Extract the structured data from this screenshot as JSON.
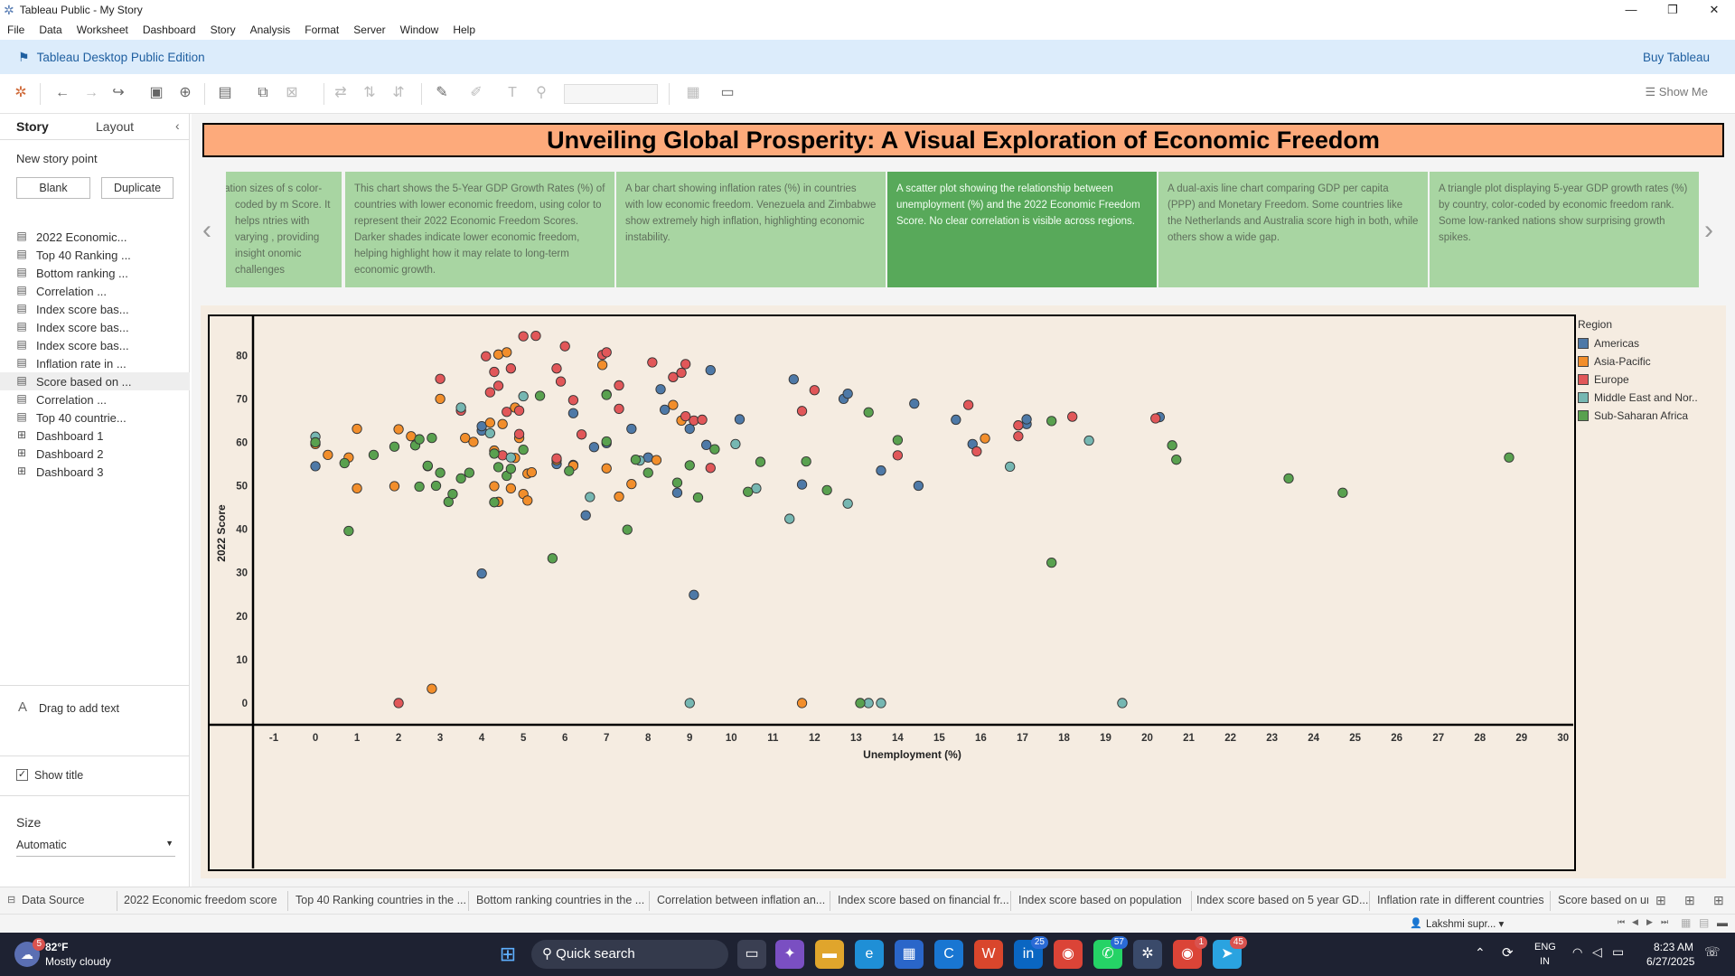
{
  "window": {
    "title": "Tableau Public - My Story"
  },
  "menu": [
    "File",
    "Data",
    "Worksheet",
    "Dashboard",
    "Story",
    "Analysis",
    "Format",
    "Server",
    "Window",
    "Help"
  ],
  "edition": {
    "label": "Tableau Desktop Public Edition",
    "buy": "Buy Tableau"
  },
  "toolbar": {
    "show_me": "Show Me"
  },
  "sidebar": {
    "tabs": {
      "story": "Story",
      "layout": "Layout"
    },
    "new_story_point": "New story point",
    "blank": "Blank",
    "duplicate": "Duplicate",
    "items": [
      {
        "label": "2022 Economic...",
        "type": "sheet"
      },
      {
        "label": "Top 40 Ranking ...",
        "type": "sheet"
      },
      {
        "label": "Bottom ranking ...",
        "type": "sheet"
      },
      {
        "label": "Correlation ...",
        "type": "sheet"
      },
      {
        "label": "Index score bas...",
        "type": "sheet"
      },
      {
        "label": "Index score bas...",
        "type": "sheet"
      },
      {
        "label": "Index score bas...",
        "type": "sheet"
      },
      {
        "label": "Inflation rate in ...",
        "type": "sheet"
      },
      {
        "label": "Score based on ...",
        "type": "sheet",
        "selected": true
      },
      {
        "label": "Correlation ...",
        "type": "sheet"
      },
      {
        "label": "Top 40 countrie...",
        "type": "sheet"
      },
      {
        "label": "Dashboard 1",
        "type": "dashboard"
      },
      {
        "label": "Dashboard 2",
        "type": "dashboard"
      },
      {
        "label": "Dashboard 3",
        "type": "dashboard"
      }
    ],
    "drag_text": "Drag to add text",
    "show_title": "Show title",
    "size_label": "Size",
    "size_value": "Automatic"
  },
  "story": {
    "title": "Unveiling Global Prosperity: A Visual Exploration of Economic Freedom",
    "points": [
      {
        "text": "population sizes of s color-coded by m Score. It helps ntries with varying , providing insight onomic challenges",
        "active": false
      },
      {
        "text": "This chart shows the 5-Year GDP Growth Rates (%) of countries with lower economic freedom, using color to represent their 2022 Economic Freedom Scores. Darker shades indicate lower economic freedom, helping highlight how it may relate to long-term economic growth.",
        "active": false
      },
      {
        "text": "A bar chart showing inflation rates (%) in countries with low economic freedom. Venezuela and Zimbabwe show extremely high inflation, highlighting economic instability.",
        "active": false
      },
      {
        "text": "A scatter plot showing the relationship between unemployment (%) and the 2022 Economic Freedom Score. No clear correlation is visible across regions.",
        "active": true
      },
      {
        "text": "A dual-axis line chart comparing GDP per capita (PPP) and Monetary Freedom. Some countries like the Netherlands and Australia score high in both, while others show a wide gap.",
        "active": false
      },
      {
        "text": "A triangle plot displaying 5-year GDP growth rates (%) by country, color-coded by economic freedom rank. Some low-ranked nations show surprising growth spikes.",
        "active": false
      }
    ]
  },
  "chart_data": {
    "type": "scatter",
    "xlabel": "Unemployment (%)",
    "ylabel": "2022 Score",
    "xlim": [
      -1.5,
      30.2
    ],
    "ylim": [
      -5,
      89
    ],
    "xticks": [
      -1,
      0,
      1,
      2,
      3,
      4,
      5,
      6,
      7,
      8,
      9,
      10,
      11,
      12,
      13,
      14,
      15,
      16,
      17,
      18,
      19,
      20,
      21,
      22,
      23,
      24,
      25,
      26,
      27,
      28,
      29,
      30
    ],
    "yticks": [
      0,
      10,
      20,
      30,
      40,
      50,
      60,
      70,
      80
    ],
    "legend_title": "Region",
    "series": [
      {
        "name": "Americas",
        "color": "#4e79a7",
        "points": [
          [
            0,
            54.5
          ],
          [
            4,
            29.8
          ],
          [
            4,
            62.7
          ],
          [
            4,
            63.7
          ],
          [
            5.8,
            55
          ],
          [
            6.2,
            54.8
          ],
          [
            6.2,
            66.7
          ],
          [
            6.5,
            43.2
          ],
          [
            6.7,
            58.9
          ],
          [
            7,
            59.8
          ],
          [
            7.6,
            63.1
          ],
          [
            8,
            56.5
          ],
          [
            8.3,
            72.2
          ],
          [
            8.4,
            67.5
          ],
          [
            8.7,
            48.4
          ],
          [
            9.0,
            63.1
          ],
          [
            9.1,
            24.9
          ],
          [
            9.4,
            59.4
          ],
          [
            9.5,
            76.6
          ],
          [
            10.2,
            65.3
          ],
          [
            11.5,
            74.5
          ],
          [
            11.7,
            50.3
          ],
          [
            12.7,
            70
          ],
          [
            12.8,
            71.2
          ],
          [
            13.6,
            53.5
          ],
          [
            14.4,
            68.9
          ],
          [
            14.5,
            50
          ],
          [
            15.4,
            65.2
          ],
          [
            15.8,
            59.6
          ],
          [
            17.1,
            64.2
          ],
          [
            17.1,
            65.3
          ],
          [
            20.3,
            65.8
          ]
        ]
      },
      {
        "name": "Asia-Pacific",
        "color": "#f28e2b",
        "points": [
          [
            0,
            59.6
          ],
          [
            0.3,
            57.1
          ],
          [
            0.8,
            56.5
          ],
          [
            1,
            49.4
          ],
          [
            1,
            63.1
          ],
          [
            1.9,
            49.9
          ],
          [
            2,
            63
          ],
          [
            2.3,
            61.4
          ],
          [
            2.7,
            54.5
          ],
          [
            2.8,
            3.3
          ],
          [
            3,
            70
          ],
          [
            3.6,
            61
          ],
          [
            3.8,
            60.1
          ],
          [
            4.2,
            64.5
          ],
          [
            4.3,
            49.9
          ],
          [
            4.3,
            58.1
          ],
          [
            4.4,
            46.3
          ],
          [
            4.4,
            80.2
          ],
          [
            4.5,
            64.2
          ],
          [
            4.6,
            80.7
          ],
          [
            4.7,
            49.4
          ],
          [
            4.8,
            56.4
          ],
          [
            4.8,
            68
          ],
          [
            4.9,
            61
          ],
          [
            5.0,
            48.1
          ],
          [
            5.1,
            52.8
          ],
          [
            5.1,
            46.6
          ],
          [
            5.2,
            53.1
          ],
          [
            5.8,
            55.9
          ],
          [
            6.2,
            54.6
          ],
          [
            6.9,
            77.8
          ],
          [
            7.0,
            54
          ],
          [
            7.3,
            47.5
          ],
          [
            7.6,
            50.4
          ],
          [
            8.2,
            55.9
          ],
          [
            8.6,
            68.6
          ],
          [
            8.8,
            65
          ],
          [
            11.7,
            0
          ],
          [
            16.1,
            60.9
          ]
        ]
      },
      {
        "name": "Europe",
        "color": "#e15759",
        "points": [
          [
            2,
            0
          ],
          [
            3,
            74.6
          ],
          [
            3.5,
            67.3
          ],
          [
            4.1,
            79.8
          ],
          [
            4.2,
            71.5
          ],
          [
            4.3,
            76.2
          ],
          [
            4.4,
            73
          ],
          [
            4.5,
            57
          ],
          [
            4.6,
            67
          ],
          [
            4.7,
            77
          ],
          [
            4.9,
            67.3
          ],
          [
            4.9,
            61.9
          ],
          [
            5.0,
            84.4
          ],
          [
            5.3,
            84.5
          ],
          [
            5.8,
            77
          ],
          [
            5.8,
            56.3
          ],
          [
            5.9,
            74
          ],
          [
            6.0,
            82.1
          ],
          [
            6.2,
            69.7
          ],
          [
            6.4,
            61.8
          ],
          [
            6.9,
            80.1
          ],
          [
            7.0,
            80.7
          ],
          [
            7.3,
            73.1
          ],
          [
            7.3,
            67.7
          ],
          [
            8.1,
            78.4
          ],
          [
            8.6,
            75
          ],
          [
            8.8,
            76
          ],
          [
            8.9,
            78
          ],
          [
            8.9,
            66
          ],
          [
            9.1,
            65
          ],
          [
            9.3,
            65.2
          ],
          [
            9.5,
            54.1
          ],
          [
            11.7,
            67.2
          ],
          [
            12,
            72
          ],
          [
            14.0,
            57
          ],
          [
            15.7,
            68.6
          ],
          [
            15.9,
            57.9
          ],
          [
            16.9,
            61.4
          ],
          [
            16.9,
            63.9
          ],
          [
            18.2,
            65.9
          ],
          [
            20.2,
            65.5
          ]
        ]
      },
      {
        "name": "Middle East and Nor..",
        "color": "#76b7b2",
        "points": [
          [
            0,
            61.3
          ],
          [
            3.5,
            68
          ],
          [
            4.2,
            62.1
          ],
          [
            4.7,
            56.5
          ],
          [
            5,
            70.6
          ],
          [
            6.6,
            47.4
          ],
          [
            7.8,
            55.8
          ],
          [
            9,
            0
          ],
          [
            10.1,
            59.6
          ],
          [
            10.6,
            49.4
          ],
          [
            11.4,
            42.4
          ],
          [
            12.8,
            45.9
          ],
          [
            13.3,
            0
          ],
          [
            13.6,
            0
          ],
          [
            16.7,
            54.4
          ],
          [
            18.6,
            60.4
          ],
          [
            19.4,
            0
          ]
        ]
      },
      {
        "name": "Sub-Saharan Africa",
        "color": "#59a14f",
        "points": [
          [
            0,
            60
          ],
          [
            0.7,
            55.2
          ],
          [
            0.8,
            39.6
          ],
          [
            1.4,
            57.1
          ],
          [
            1.9,
            59
          ],
          [
            2.4,
            59.3
          ],
          [
            2.5,
            60.7
          ],
          [
            2.5,
            49.8
          ],
          [
            2.7,
            54.6
          ],
          [
            2.8,
            61
          ],
          [
            2.9,
            50
          ],
          [
            3.0,
            53
          ],
          [
            3.2,
            46.3
          ],
          [
            3.3,
            48.1
          ],
          [
            3.5,
            51.7
          ],
          [
            3.7,
            53
          ],
          [
            4.3,
            57.4
          ],
          [
            4.3,
            46.2
          ],
          [
            4.4,
            54.3
          ],
          [
            4.6,
            52.3
          ],
          [
            4.7,
            53.9
          ],
          [
            5.0,
            58.3
          ],
          [
            5.4,
            70.7
          ],
          [
            5.7,
            33.3
          ],
          [
            6.1,
            53.4
          ],
          [
            7.0,
            71
          ],
          [
            7.0,
            70.9
          ],
          [
            7.0,
            60.2
          ],
          [
            7.5,
            39.9
          ],
          [
            7.7,
            56
          ],
          [
            8,
            53
          ],
          [
            8.7,
            50.7
          ],
          [
            9.0,
            54.7
          ],
          [
            9.2,
            47.3
          ],
          [
            9.6,
            58.4
          ],
          [
            10.4,
            48.6
          ],
          [
            10.7,
            55.5
          ],
          [
            11.8,
            55.6
          ],
          [
            12.3,
            49
          ],
          [
            13.1,
            0
          ],
          [
            13.3,
            66.9
          ],
          [
            14.0,
            60.5
          ],
          [
            17.7,
            64.9
          ],
          [
            17.7,
            32.3
          ],
          [
            20.6,
            59.3
          ],
          [
            20.7,
            56
          ],
          [
            23.4,
            51.7
          ],
          [
            24.7,
            48.4
          ],
          [
            28.7,
            56.5
          ]
        ]
      }
    ]
  },
  "sheet_tabs": [
    "Data Source",
    "2022 Economic freedom score",
    "Top 40 Ranking countries in the ...",
    "Bottom ranking countries in the ...",
    "Correlation between inflation an...",
    "Index score based on financial fr...",
    "Index score based on population",
    "Index score based on 5 year GD...",
    "Inflation rate in different countries",
    "Score based on ur"
  ],
  "status": {
    "user": "Lakshmi supr..."
  },
  "taskbar": {
    "weather_temp": "82°F",
    "weather_desc": "Mostly cloudy",
    "weather_badge": "5",
    "search": "Quick search",
    "lang1": "ENG",
    "lang2": "IN",
    "time": "8:23 AM",
    "date": "6/27/2025",
    "badges": {
      "linkedin": "25",
      "whatsapp": "57",
      "chrome2": "1",
      "telegram": "45"
    }
  }
}
